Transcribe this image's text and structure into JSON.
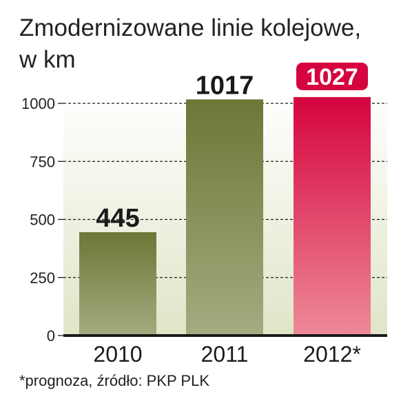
{
  "title_line1": "Zmodernizowane linie kolejowe,",
  "title_line2": "w km",
  "footnote": "*prognoza, źródło: PKP PLK",
  "chart_data": {
    "type": "bar",
    "categories": [
      "2010",
      "2011",
      "2012*"
    ],
    "values": [
      445,
      1017,
      1027
    ],
    "data_labels": [
      "445",
      "1017",
      "1027"
    ],
    "highlight_index": 2,
    "y_ticks": [
      0,
      250,
      500,
      750,
      1000
    ],
    "y_tick_labels": [
      "0",
      "250",
      "500",
      "750",
      "1000"
    ],
    "ylim": [
      0,
      1050
    ],
    "grid": "dashed horizontal",
    "colors": {
      "bar_top": "#6c7736",
      "bar_bottom": "#a4ab80",
      "highlight_top": "#d5043f",
      "highlight_bottom": "#ee8a98",
      "highlight_label_bg": "#d5043f",
      "background_top": "#ffffff",
      "background_bottom": "#dfe5c7",
      "axis": "#1a1a1a"
    }
  }
}
